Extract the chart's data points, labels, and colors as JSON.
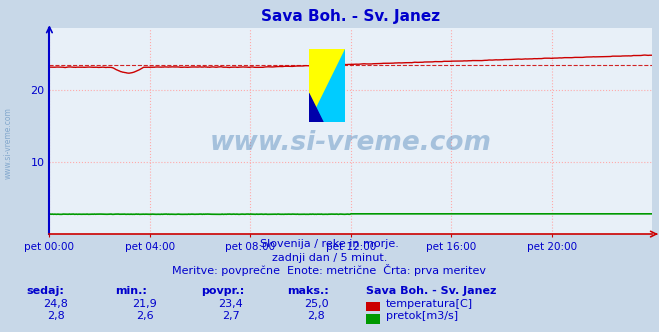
{
  "title": "Sava Boh. - Sv. Janez",
  "bg_color": "#c8d8e8",
  "plot_bg_color": "#e8f0f8",
  "grid_color_dotted": "#ffaaaa",
  "xlabel_ticks": [
    "pet 00:00",
    "pet 04:00",
    "pet 08:00",
    "pet 12:00",
    "pet 16:00",
    "pet 20:00"
  ],
  "xtick_positions": [
    0,
    96,
    192,
    288,
    384,
    480
  ],
  "xlim": [
    0,
    576
  ],
  "ylim": [
    0,
    28.5
  ],
  "yticks": [
    10,
    20
  ],
  "n_points": 576,
  "temp_avg": 23.4,
  "temp_color": "#cc0000",
  "flow_color": "#009900",
  "left_axis_color": "#0000cc",
  "bottom_axis_color": "#cc0000",
  "title_color": "#0000cc",
  "label_color": "#0000cc",
  "watermark_color": "#5588bb",
  "text1": "Slovenija / reke in morje.",
  "text2": "zadnji dan / 5 minut.",
  "text3": "Meritve: povprečne  Enote: metrične  Črta: prva meritev"
}
